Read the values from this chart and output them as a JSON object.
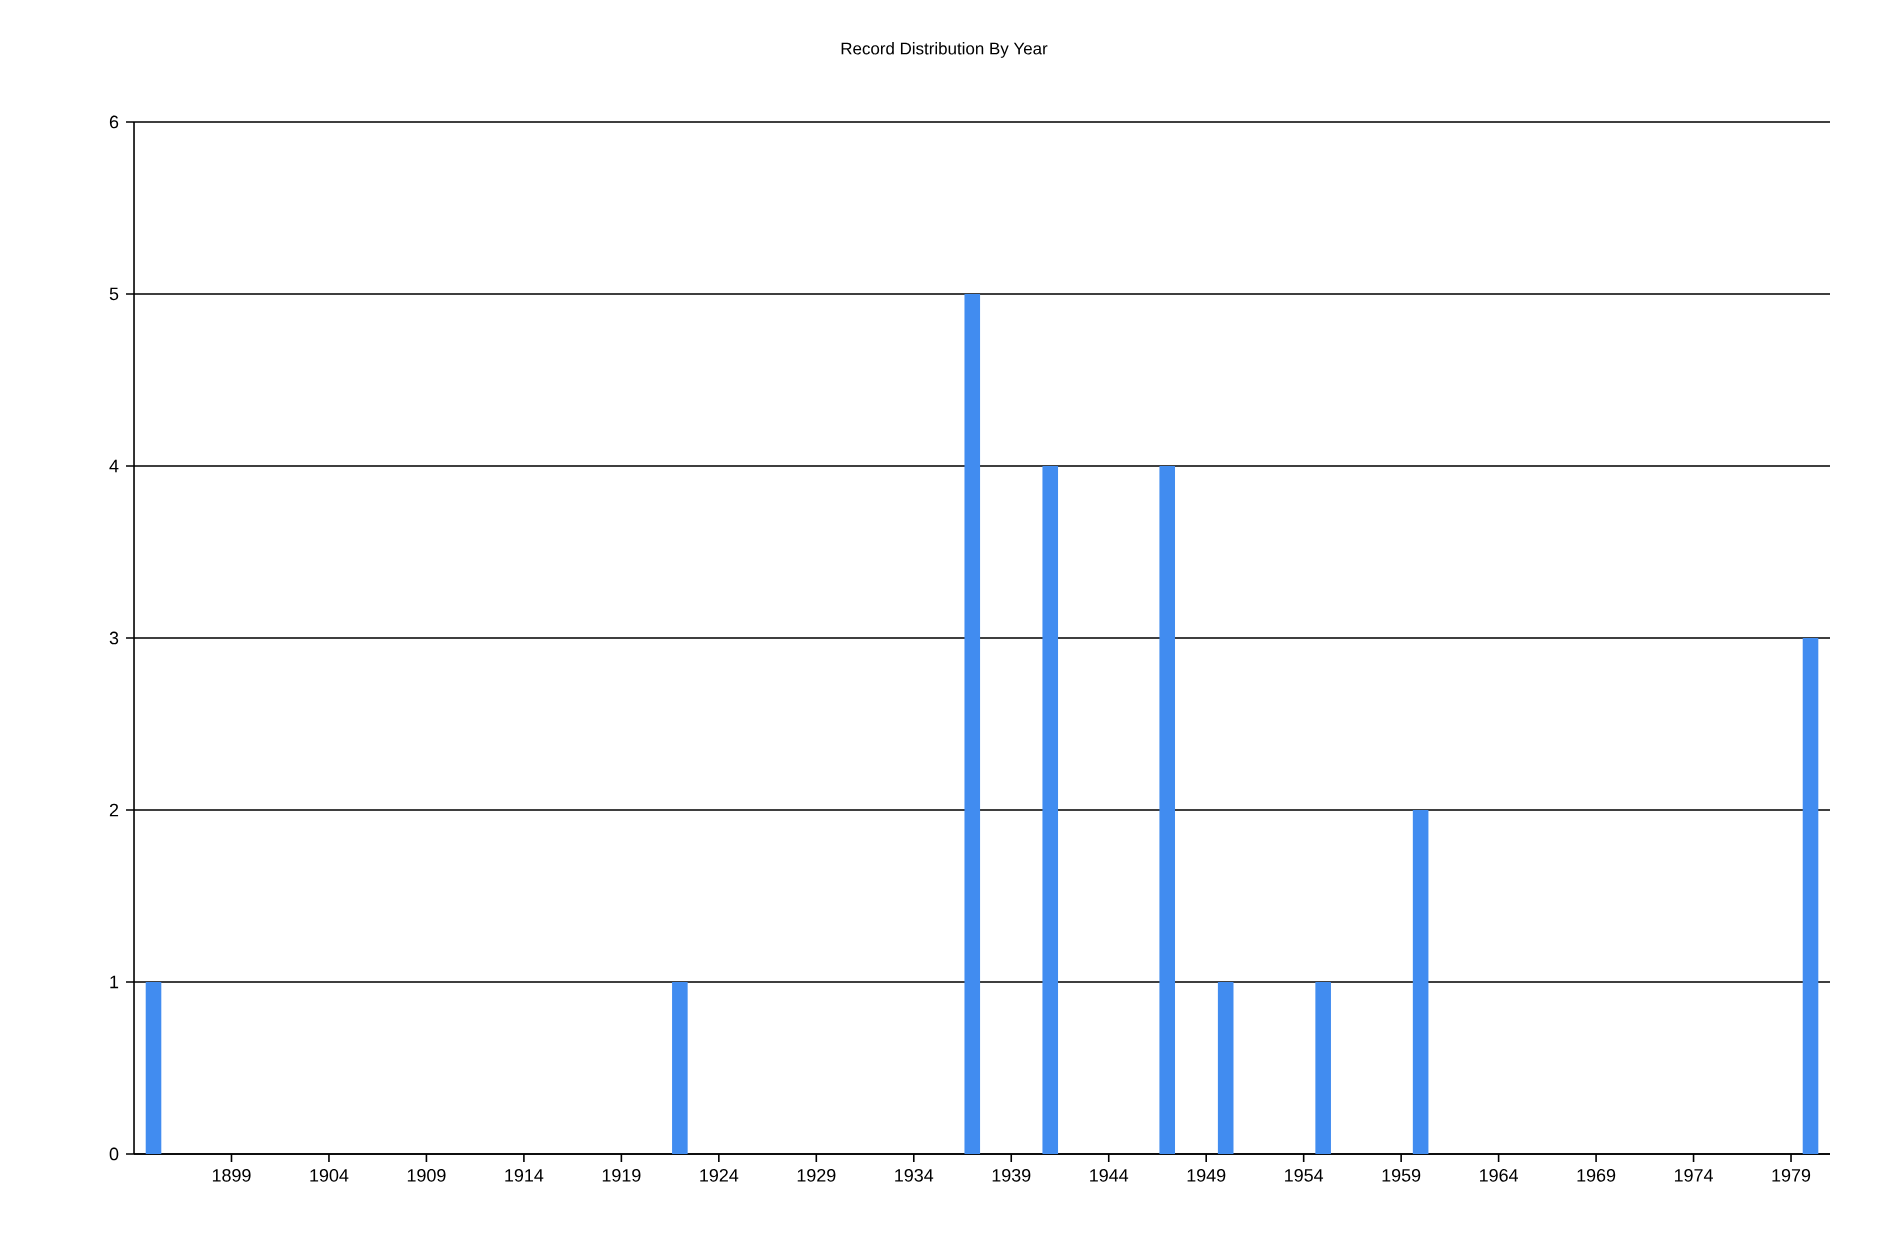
{
  "chart_data": {
    "type": "bar",
    "title": "Record Distribution By Year",
    "x": [
      1895,
      1922,
      1937,
      1941,
      1947,
      1950,
      1955,
      1960,
      1980
    ],
    "values": [
      1,
      1,
      5,
      4,
      4,
      1,
      1,
      2,
      3
    ],
    "color": "#418cf0",
    "xlim": [
      1894,
      1981
    ],
    "xticks": [
      1899,
      1904,
      1909,
      1914,
      1919,
      1924,
      1929,
      1934,
      1939,
      1944,
      1949,
      1954,
      1959,
      1964,
      1969,
      1974,
      1979
    ],
    "ylim": [
      0,
      6
    ],
    "yticks": [
      0,
      1,
      2,
      3,
      4,
      5,
      6
    ],
    "grid": "y"
  }
}
